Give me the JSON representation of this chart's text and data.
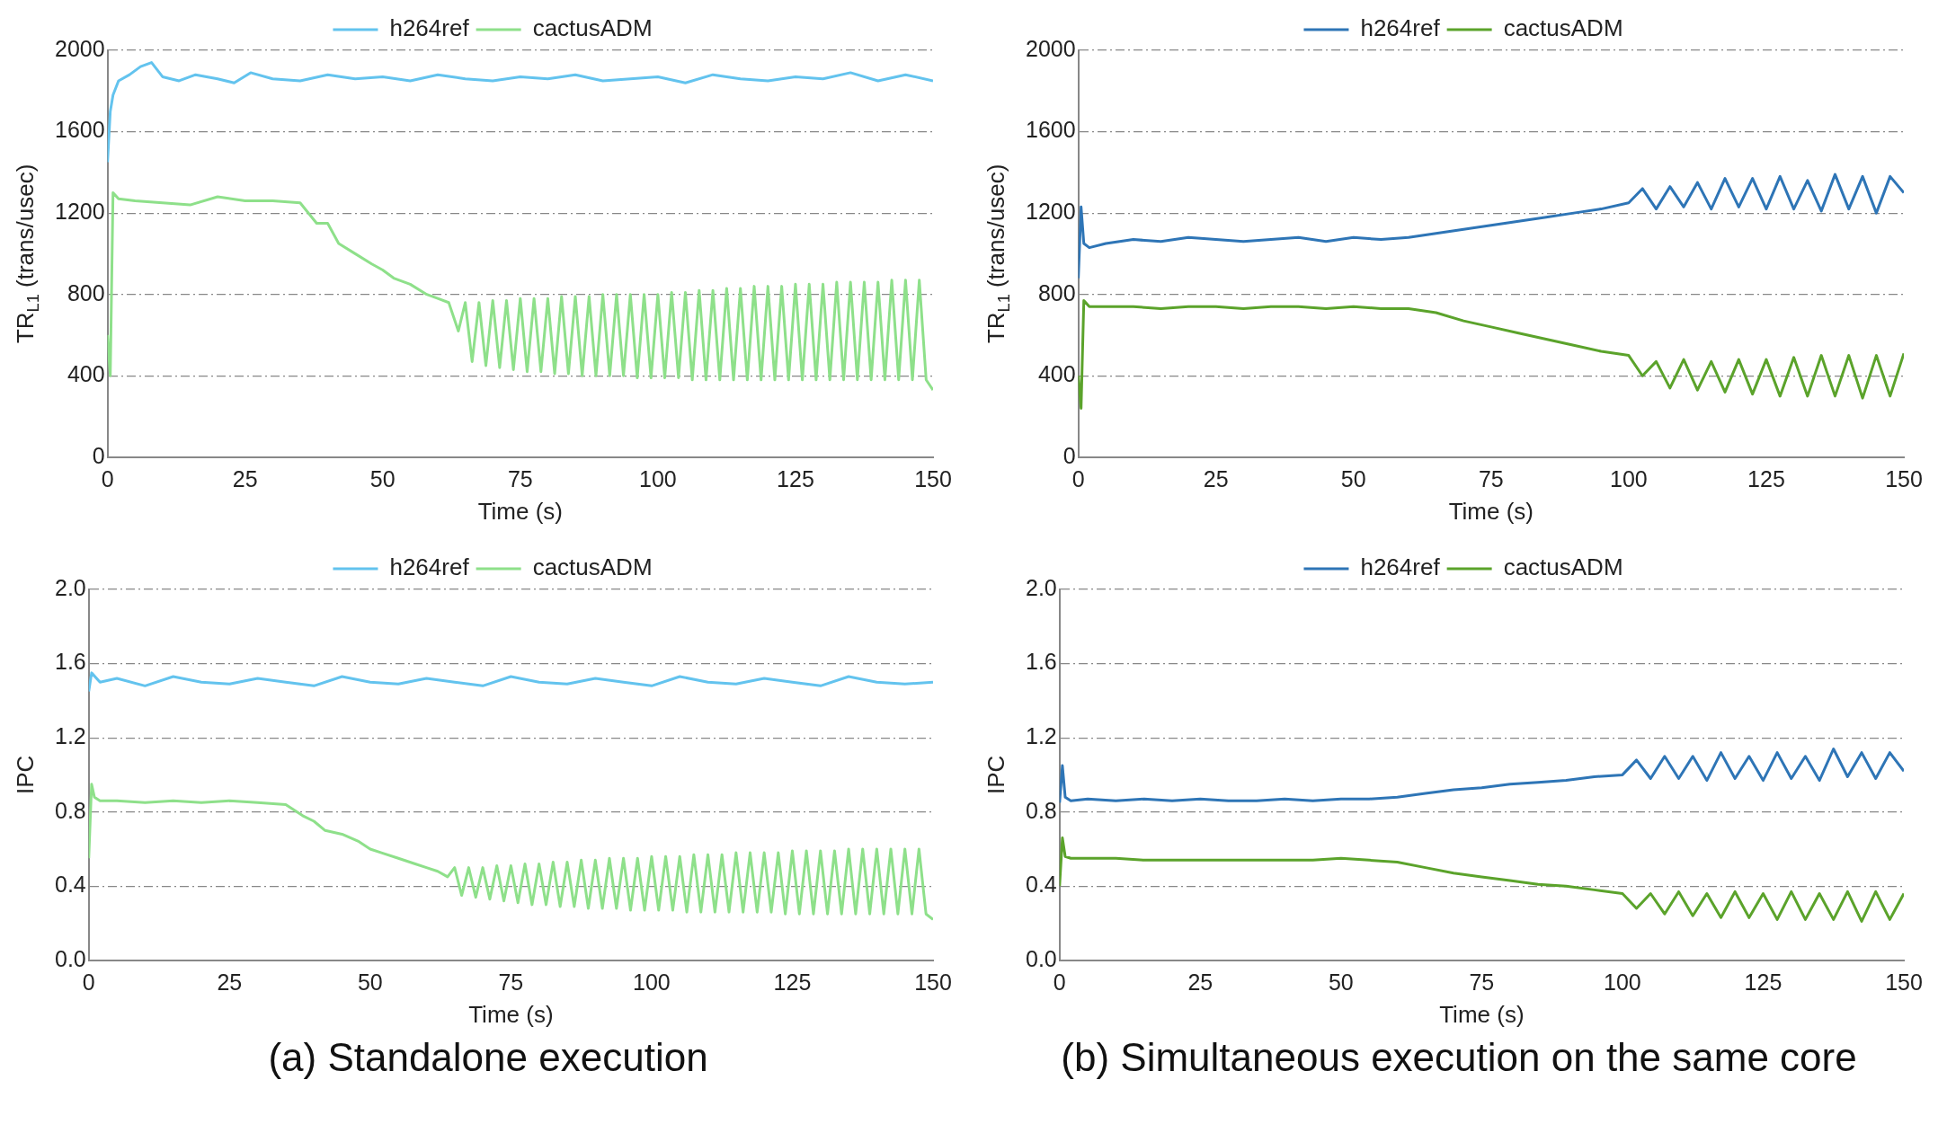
{
  "chart_data": [
    {
      "type": "line",
      "xlabel": "Time (s)",
      "ylabel": "TR$_{L1}$ (trans/usec)",
      "xlim": [
        0,
        150
      ],
      "xticks": [
        0,
        25,
        50,
        75,
        100,
        125,
        150
      ],
      "ylim": [
        0,
        2000
      ],
      "yticks": [
        0,
        400,
        800,
        1200,
        1600,
        2000
      ],
      "grid": "y",
      "legend": "top",
      "marker": "none",
      "line_style": "solid",
      "series": [
        {
          "name": "h264ref",
          "color": "#63c3ee",
          "x": [
            0,
            0.5,
            1,
            2,
            4,
            6,
            8,
            10,
            13,
            16,
            20,
            23,
            26,
            30,
            35,
            40,
            45,
            50,
            55,
            60,
            65,
            70,
            75,
            80,
            85,
            90,
            95,
            100,
            105,
            110,
            115,
            120,
            125,
            130,
            135,
            140,
            145,
            150
          ],
          "values": [
            1450,
            1700,
            1780,
            1850,
            1880,
            1920,
            1940,
            1870,
            1850,
            1880,
            1860,
            1840,
            1890,
            1860,
            1850,
            1880,
            1860,
            1870,
            1850,
            1880,
            1860,
            1850,
            1870,
            1860,
            1880,
            1850,
            1860,
            1870,
            1840,
            1880,
            1860,
            1850,
            1870,
            1860,
            1890,
            1850,
            1880,
            1850
          ]
        },
        {
          "name": "cactusADM",
          "color": "#8ee08a",
          "x": [
            0,
            0.5,
            1,
            2,
            5,
            10,
            15,
            20,
            25,
            30,
            35,
            38,
            40,
            42,
            45,
            48,
            50,
            52,
            55,
            58,
            60,
            62,
            63.75,
            65,
            66.25,
            67.5,
            68.75,
            70,
            71.25,
            72.5,
            73.75,
            75,
            76.25,
            77.5,
            78.75,
            80,
            81.25,
            82.5,
            83.75,
            85,
            86.25,
            87.5,
            88.75,
            90,
            91.25,
            92.5,
            93.75,
            95,
            96.25,
            97.5,
            98.75,
            100,
            101.25,
            102.5,
            103.75,
            105,
            106.25,
            107.5,
            108.75,
            110,
            111.25,
            112.5,
            113.75,
            115,
            116.25,
            117.5,
            118.75,
            120,
            121.25,
            122.5,
            123.75,
            125,
            126.25,
            127.5,
            128.75,
            130,
            131.25,
            132.5,
            133.75,
            135,
            136.25,
            137.5,
            138.75,
            140,
            141.25,
            142.5,
            143.75,
            145,
            146.25,
            147.5,
            148.75,
            150
          ],
          "values": [
            600,
            400,
            1300,
            1270,
            1260,
            1250,
            1240,
            1280,
            1260,
            1260,
            1250,
            1150,
            1150,
            1050,
            1000,
            950,
            920,
            880,
            850,
            800,
            780,
            760,
            620,
            760,
            470,
            760,
            450,
            770,
            440,
            770,
            430,
            780,
            420,
            780,
            420,
            780,
            410,
            790,
            410,
            790,
            400,
            790,
            400,
            800,
            400,
            800,
            400,
            800,
            390,
            800,
            390,
            800,
            390,
            810,
            390,
            810,
            380,
            820,
            380,
            820,
            380,
            830,
            380,
            830,
            380,
            840,
            380,
            840,
            380,
            840,
            380,
            850,
            380,
            850,
            380,
            850,
            380,
            860,
            380,
            860,
            380,
            860,
            380,
            860,
            380,
            870,
            380,
            870,
            380,
            870,
            380,
            330
          ]
        }
      ]
    },
    {
      "type": "line",
      "xlabel": "Time (s)",
      "ylabel": "TR$_{L1}$ (trans/usec)",
      "xlim": [
        0,
        150
      ],
      "xticks": [
        0,
        25,
        50,
        75,
        100,
        125,
        150
      ],
      "ylim": [
        0,
        2000
      ],
      "yticks": [
        0,
        400,
        800,
        1200,
        1600,
        2000
      ],
      "grid": "y",
      "legend": "top",
      "marker": "none",
      "line_style": "solid",
      "series": [
        {
          "name": "h264ref",
          "color": "#2e75b6",
          "x": [
            0,
            0.5,
            1,
            2,
            5,
            10,
            15,
            20,
            25,
            30,
            35,
            40,
            45,
            50,
            55,
            60,
            65,
            70,
            75,
            80,
            85,
            90,
            95,
            100,
            102.5,
            105,
            107.5,
            110,
            112.5,
            115,
            117.5,
            120,
            122.5,
            125,
            127.5,
            130,
            132.5,
            135,
            137.5,
            140,
            142.5,
            145,
            147.5,
            150
          ],
          "values": [
            880,
            1230,
            1050,
            1030,
            1050,
            1070,
            1060,
            1080,
            1070,
            1060,
            1070,
            1080,
            1060,
            1080,
            1070,
            1080,
            1100,
            1120,
            1140,
            1160,
            1180,
            1200,
            1220,
            1250,
            1320,
            1220,
            1330,
            1230,
            1350,
            1220,
            1370,
            1230,
            1370,
            1220,
            1380,
            1220,
            1360,
            1210,
            1390,
            1220,
            1380,
            1200,
            1380,
            1300
          ]
        },
        {
          "name": "cactusADM",
          "color": "#5ba32b",
          "x": [
            0,
            0.5,
            1,
            2,
            5,
            10,
            15,
            20,
            25,
            30,
            35,
            40,
            45,
            50,
            55,
            60,
            65,
            70,
            75,
            80,
            85,
            90,
            95,
            100,
            102.5,
            105,
            107.5,
            110,
            112.5,
            115,
            117.5,
            120,
            122.5,
            125,
            127.5,
            130,
            132.5,
            135,
            137.5,
            140,
            142.5,
            145,
            147.5,
            150
          ],
          "values": [
            400,
            240,
            770,
            740,
            740,
            740,
            730,
            740,
            740,
            730,
            740,
            740,
            730,
            740,
            730,
            730,
            710,
            670,
            640,
            610,
            580,
            550,
            520,
            500,
            400,
            470,
            340,
            480,
            330,
            470,
            320,
            480,
            310,
            480,
            300,
            490,
            300,
            500,
            300,
            500,
            290,
            500,
            300,
            510
          ]
        }
      ]
    },
    {
      "type": "line",
      "xlabel": "Time (s)",
      "ylabel": "IPC",
      "xlim": [
        0,
        150
      ],
      "xticks": [
        0,
        25,
        50,
        75,
        100,
        125,
        150
      ],
      "ylim": [
        0,
        2
      ],
      "yticks": [
        {
          "value": 0,
          "label": "0.0"
        },
        {
          "value": 0.4,
          "label": "0.4"
        },
        {
          "value": 0.8,
          "label": "0.8"
        },
        {
          "value": 1.2,
          "label": "1.2"
        },
        {
          "value": 1.6,
          "label": "1.6"
        },
        {
          "value": 2,
          "label": "2.0"
        }
      ],
      "grid": "y",
      "legend": "top",
      "marker": "none",
      "line_style": "solid",
      "annotations": [
        "(a) Standalone execution"
      ],
      "series": [
        {
          "name": "h264ref",
          "color": "#63c3ee",
          "x": [
            0,
            0.5,
            2,
            5,
            10,
            15,
            20,
            25,
            30,
            35,
            40,
            45,
            50,
            55,
            60,
            65,
            70,
            75,
            80,
            85,
            90,
            95,
            100,
            105,
            110,
            115,
            120,
            125,
            130,
            135,
            140,
            145,
            150
          ],
          "values": [
            1.45,
            1.55,
            1.5,
            1.52,
            1.48,
            1.53,
            1.5,
            1.49,
            1.52,
            1.5,
            1.48,
            1.53,
            1.5,
            1.49,
            1.52,
            1.5,
            1.48,
            1.53,
            1.5,
            1.49,
            1.52,
            1.5,
            1.48,
            1.53,
            1.5,
            1.49,
            1.52,
            1.5,
            1.48,
            1.53,
            1.5,
            1.49,
            1.5
          ]
        },
        {
          "name": "cactusADM",
          "color": "#8ee08a",
          "x": [
            0,
            0.5,
            1,
            2,
            5,
            10,
            15,
            20,
            25,
            30,
            35,
            38,
            40,
            42,
            45,
            48,
            50,
            52,
            55,
            58,
            60,
            62,
            63.75,
            65,
            66.25,
            67.5,
            68.75,
            70,
            71.25,
            72.5,
            73.75,
            75,
            76.25,
            77.5,
            78.75,
            80,
            81.25,
            82.5,
            83.75,
            85,
            86.25,
            87.5,
            88.75,
            90,
            91.25,
            92.5,
            93.75,
            95,
            96.25,
            97.5,
            98.75,
            100,
            101.25,
            102.5,
            103.75,
            105,
            106.25,
            107.5,
            108.75,
            110,
            111.25,
            112.5,
            113.75,
            115,
            116.25,
            117.5,
            118.75,
            120,
            121.25,
            122.5,
            123.75,
            125,
            126.25,
            127.5,
            128.75,
            130,
            131.25,
            132.5,
            133.75,
            135,
            136.25,
            137.5,
            138.75,
            140,
            141.25,
            142.5,
            143.75,
            145,
            146.25,
            147.5,
            148.75,
            150
          ],
          "values": [
            0.55,
            0.95,
            0.88,
            0.86,
            0.86,
            0.85,
            0.86,
            0.85,
            0.86,
            0.85,
            0.84,
            0.78,
            0.75,
            0.7,
            0.68,
            0.64,
            0.6,
            0.58,
            0.55,
            0.52,
            0.5,
            0.48,
            0.45,
            0.5,
            0.35,
            0.5,
            0.34,
            0.5,
            0.33,
            0.51,
            0.32,
            0.51,
            0.31,
            0.52,
            0.3,
            0.52,
            0.3,
            0.53,
            0.29,
            0.53,
            0.29,
            0.54,
            0.28,
            0.54,
            0.28,
            0.55,
            0.28,
            0.55,
            0.27,
            0.55,
            0.27,
            0.56,
            0.27,
            0.56,
            0.27,
            0.56,
            0.26,
            0.57,
            0.26,
            0.57,
            0.26,
            0.57,
            0.26,
            0.58,
            0.26,
            0.58,
            0.26,
            0.58,
            0.26,
            0.58,
            0.25,
            0.59,
            0.25,
            0.59,
            0.25,
            0.59,
            0.25,
            0.59,
            0.25,
            0.6,
            0.25,
            0.6,
            0.25,
            0.6,
            0.25,
            0.6,
            0.25,
            0.6,
            0.25,
            0.6,
            0.25,
            0.22
          ]
        }
      ]
    },
    {
      "type": "line",
      "xlabel": "Time (s)",
      "ylabel": "IPC",
      "xlim": [
        0,
        150
      ],
      "xticks": [
        0,
        25,
        50,
        75,
        100,
        125,
        150
      ],
      "ylim": [
        0,
        2
      ],
      "yticks": [
        {
          "value": 0,
          "label": "0.0"
        },
        {
          "value": 0.4,
          "label": "0.4"
        },
        {
          "value": 0.8,
          "label": "0.8"
        },
        {
          "value": 1.2,
          "label": "1.2"
        },
        {
          "value": 1.6,
          "label": "1.6"
        },
        {
          "value": 2,
          "label": "2.0"
        }
      ],
      "grid": "y",
      "legend": "top",
      "marker": "none",
      "line_style": "solid",
      "annotations": [
        "(b) Simultaneous execution on the same core"
      ],
      "series": [
        {
          "name": "h264ref",
          "color": "#2e75b6",
          "x": [
            0,
            0.5,
            1,
            2,
            5,
            10,
            15,
            20,
            25,
            30,
            35,
            40,
            45,
            50,
            55,
            60,
            65,
            70,
            75,
            80,
            85,
            90,
            95,
            100,
            102.5,
            105,
            107.5,
            110,
            112.5,
            115,
            117.5,
            120,
            122.5,
            125,
            127.5,
            130,
            132.5,
            135,
            137.5,
            140,
            142.5,
            145,
            147.5,
            150
          ],
          "values": [
            0.85,
            1.05,
            0.88,
            0.86,
            0.87,
            0.86,
            0.87,
            0.86,
            0.87,
            0.86,
            0.86,
            0.87,
            0.86,
            0.87,
            0.87,
            0.88,
            0.9,
            0.92,
            0.93,
            0.95,
            0.96,
            0.97,
            0.99,
            1,
            1.08,
            0.98,
            1.1,
            0.98,
            1.1,
            0.97,
            1.12,
            0.98,
            1.1,
            0.97,
            1.12,
            0.98,
            1.1,
            0.97,
            1.14,
            0.99,
            1.12,
            0.98,
            1.12,
            1.02
          ]
        },
        {
          "name": "cactusADM",
          "color": "#5ba32b",
          "x": [
            0,
            0.5,
            1,
            2,
            5,
            10,
            15,
            20,
            25,
            30,
            35,
            40,
            45,
            50,
            55,
            60,
            65,
            70,
            75,
            80,
            85,
            90,
            95,
            100,
            102.5,
            105,
            107.5,
            110,
            112.5,
            115,
            117.5,
            120,
            122.5,
            125,
            127.5,
            130,
            132.5,
            135,
            137.5,
            140,
            142.5,
            145,
            147.5,
            150
          ],
          "values": [
            0.4,
            0.66,
            0.56,
            0.55,
            0.55,
            0.55,
            0.54,
            0.54,
            0.54,
            0.54,
            0.54,
            0.54,
            0.54,
            0.55,
            0.54,
            0.53,
            0.5,
            0.47,
            0.45,
            0.43,
            0.41,
            0.4,
            0.38,
            0.36,
            0.28,
            0.36,
            0.25,
            0.37,
            0.24,
            0.36,
            0.23,
            0.37,
            0.23,
            0.36,
            0.22,
            0.37,
            0.22,
            0.36,
            0.22,
            0.37,
            0.21,
            0.37,
            0.22,
            0.36
          ]
        }
      ]
    }
  ]
}
